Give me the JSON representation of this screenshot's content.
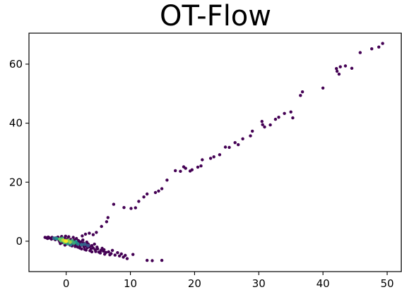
{
  "chart_data": {
    "type": "scatter",
    "title": "OT-Flow",
    "xlabel": "",
    "ylabel": "",
    "xlim": [
      -5.8,
      52.2
    ],
    "ylim": [
      -10.3,
      70.5
    ],
    "x_ticks": [
      0,
      10,
      20,
      30,
      40,
      50
    ],
    "y_ticks": [
      0,
      20,
      40,
      60
    ],
    "grid": false,
    "colormap": [
      "#440154",
      "#3b528b",
      "#21918c",
      "#5ec962",
      "#fde725"
    ],
    "series": [
      {
        "points": [
          [
            49.3,
            67.0
          ],
          [
            48.7,
            65.8
          ],
          [
            47.6,
            65.2
          ],
          [
            45.8,
            63.9
          ],
          [
            44.5,
            58.6
          ],
          [
            43.5,
            59.4
          ],
          [
            42.7,
            59.1
          ],
          [
            42.2,
            57.6
          ],
          [
            42.1,
            58.5
          ],
          [
            42.5,
            56.6
          ],
          [
            40.0,
            51.9
          ],
          [
            36.8,
            50.6
          ],
          [
            36.5,
            49.4
          ],
          [
            35.3,
            41.8
          ],
          [
            35.0,
            43.8
          ],
          [
            34.0,
            43.3
          ],
          [
            33.1,
            42.0
          ],
          [
            32.6,
            41.3
          ],
          [
            31.8,
            39.4
          ],
          [
            30.9,
            38.7
          ],
          [
            30.6,
            39.5
          ],
          [
            30.5,
            40.6
          ],
          [
            29.0,
            37.3
          ],
          [
            28.7,
            35.7
          ],
          [
            27.5,
            34.7
          ],
          [
            26.8,
            32.7
          ],
          [
            26.3,
            33.4
          ],
          [
            25.4,
            31.8
          ],
          [
            24.8,
            31.9
          ],
          [
            23.9,
            29.3
          ],
          [
            23.0,
            28.6
          ],
          [
            22.5,
            28.1
          ],
          [
            21.2,
            27.6
          ],
          [
            21.0,
            25.5
          ],
          [
            20.5,
            25.1
          ],
          [
            19.6,
            24.2
          ],
          [
            19.3,
            23.8
          ],
          [
            18.6,
            24.7
          ],
          [
            18.3,
            25.2
          ],
          [
            17.8,
            23.7
          ],
          [
            17.0,
            23.9
          ],
          [
            15.7,
            20.7
          ],
          [
            14.9,
            17.8
          ],
          [
            14.4,
            17.0
          ],
          [
            13.9,
            16.5
          ],
          [
            12.6,
            16.0
          ],
          [
            12.1,
            15.0
          ],
          [
            11.3,
            13.5
          ],
          [
            10.8,
            11.3
          ],
          [
            10.1,
            11.1
          ],
          [
            9.0,
            11.4
          ],
          [
            7.4,
            12.5
          ],
          [
            6.5,
            8.0
          ],
          [
            6.3,
            6.6
          ],
          [
            5.5,
            5.0
          ],
          [
            4.7,
            3.0
          ],
          [
            4.2,
            2.2
          ],
          [
            3.6,
            2.7
          ],
          [
            3.0,
            2.4
          ],
          [
            2.5,
            1.8
          ],
          [
            14.9,
            -6.5
          ],
          [
            13.4,
            -6.6
          ],
          [
            12.6,
            -6.5
          ],
          [
            10.4,
            -4.5
          ],
          [
            9.5,
            -5.9
          ],
          [
            8.9,
            -5.4
          ],
          [
            8.3,
            -5.0
          ],
          [
            7.6,
            -4.7
          ],
          [
            7.0,
            -4.2
          ],
          [
            6.6,
            -3.6
          ],
          [
            6.2,
            -3.8
          ],
          [
            5.8,
            -3.4
          ],
          [
            5.4,
            -3.1
          ],
          [
            5.1,
            -3.7
          ],
          [
            4.9,
            -2.6
          ],
          [
            4.5,
            -2.9
          ],
          [
            4.2,
            -2.3
          ],
          [
            3.9,
            -2.5
          ],
          [
            3.6,
            -1.9
          ],
          [
            3.3,
            -2.2
          ],
          [
            3.0,
            -1.6
          ],
          [
            2.8,
            -1.9
          ],
          [
            2.5,
            -1.3
          ],
          [
            2.2,
            -1.6
          ],
          [
            2.0,
            -0.9
          ],
          [
            1.7,
            -1.2
          ],
          [
            1.5,
            -0.6
          ],
          [
            1.2,
            -0.9
          ],
          [
            1.0,
            -0.3
          ],
          [
            0.8,
            -0.6
          ],
          [
            0.5,
            0.0
          ],
          [
            0.3,
            -0.4
          ],
          [
            0.1,
            0.3
          ],
          [
            -0.2,
            0.0
          ],
          [
            -0.4,
            0.5
          ],
          [
            -0.6,
            0.1
          ],
          [
            -0.9,
            0.6
          ],
          [
            -1.1,
            0.3
          ],
          [
            -1.4,
            0.8
          ],
          [
            -1.7,
            0.5
          ],
          [
            -2.0,
            0.9
          ],
          [
            -2.3,
            0.7
          ],
          [
            -2.6,
            1.1
          ],
          [
            -2.9,
            0.9
          ],
          [
            -3.1,
            1.2
          ],
          [
            -3.3,
            1.3
          ],
          [
            6.0,
            -4.4
          ],
          [
            5.6,
            -2.4
          ],
          [
            4.0,
            -1.5
          ],
          [
            3.4,
            -0.9
          ],
          [
            2.7,
            -0.6
          ],
          [
            2.3,
            -0.2
          ],
          [
            1.9,
            0.2
          ],
          [
            1.3,
            0.4
          ],
          [
            0.7,
            0.6
          ],
          [
            0.2,
            0.8
          ],
          [
            -0.3,
            1.0
          ],
          [
            -0.8,
            1.2
          ],
          [
            -1.3,
            1.4
          ],
          [
            -0.5,
            -0.5
          ],
          [
            -1.0,
            -0.2
          ],
          [
            0.0,
            -1.0
          ],
          [
            0.6,
            -1.3
          ],
          [
            1.4,
            -1.8
          ],
          [
            2.1,
            -2.3
          ],
          [
            2.9,
            -2.8
          ],
          [
            3.7,
            -3.2
          ],
          [
            4.6,
            -3.5
          ],
          [
            5.3,
            -4.0
          ],
          [
            6.8,
            -4.6
          ],
          [
            7.2,
            -3.1
          ],
          [
            8.0,
            -3.9
          ],
          [
            8.6,
            -4.3
          ],
          [
            9.2,
            -4.8
          ],
          [
            5.9,
            -2.9
          ],
          [
            4.8,
            -2.0
          ],
          [
            4.4,
            -1.0
          ],
          [
            3.2,
            -0.3
          ],
          [
            2.6,
            0.4
          ],
          [
            1.6,
            0.9
          ],
          [
            1.1,
            1.3
          ],
          [
            0.4,
            1.5
          ],
          [
            -0.1,
            1.7
          ],
          [
            -0.7,
            1.6
          ],
          [
            -1.6,
            1.1
          ],
          [
            -2.2,
            1.3
          ],
          [
            -2.8,
            1.4
          ],
          [
            -0.9,
            -0.8
          ],
          [
            -0.2,
            -1.3
          ],
          [
            0.9,
            -1.6
          ],
          [
            1.8,
            -2.0
          ],
          [
            2.4,
            -2.6
          ],
          [
            3.1,
            -3.0
          ],
          [
            4.0,
            -3.6
          ],
          [
            3.5,
            -1.2
          ],
          [
            2.0,
            -0.3
          ],
          [
            1.5,
            -1.0
          ],
          [
            0.6,
            -0.2
          ]
        ],
        "density": [
          [
            0.0,
            0.0,
            1.0
          ],
          [
            -0.5,
            0.4,
            0.9
          ],
          [
            0.6,
            -0.3,
            0.85
          ],
          [
            -1.0,
            0.7,
            0.75
          ],
          [
            1.2,
            -0.6,
            0.6
          ],
          [
            -0.2,
            0.1,
            0.95
          ],
          [
            0.3,
            0.3,
            0.8
          ],
          [
            -0.8,
            0.2,
            0.7
          ],
          [
            1.8,
            -0.9,
            0.45
          ],
          [
            2.4,
            -1.2,
            0.35
          ],
          [
            -1.5,
            0.9,
            0.5
          ],
          [
            0.9,
            0.1,
            0.65
          ],
          [
            -0.3,
            -0.4,
            0.7
          ],
          [
            1.5,
            -0.2,
            0.5
          ],
          [
            2.9,
            -1.0,
            0.3
          ],
          [
            0.2,
            -0.8,
            0.55
          ],
          [
            -1.9,
            1.0,
            0.35
          ],
          [
            3.4,
            -1.5,
            0.25
          ],
          [
            0.7,
            -1.1,
            0.4
          ],
          [
            -0.6,
            0.9,
            0.6
          ]
        ]
      }
    ]
  }
}
